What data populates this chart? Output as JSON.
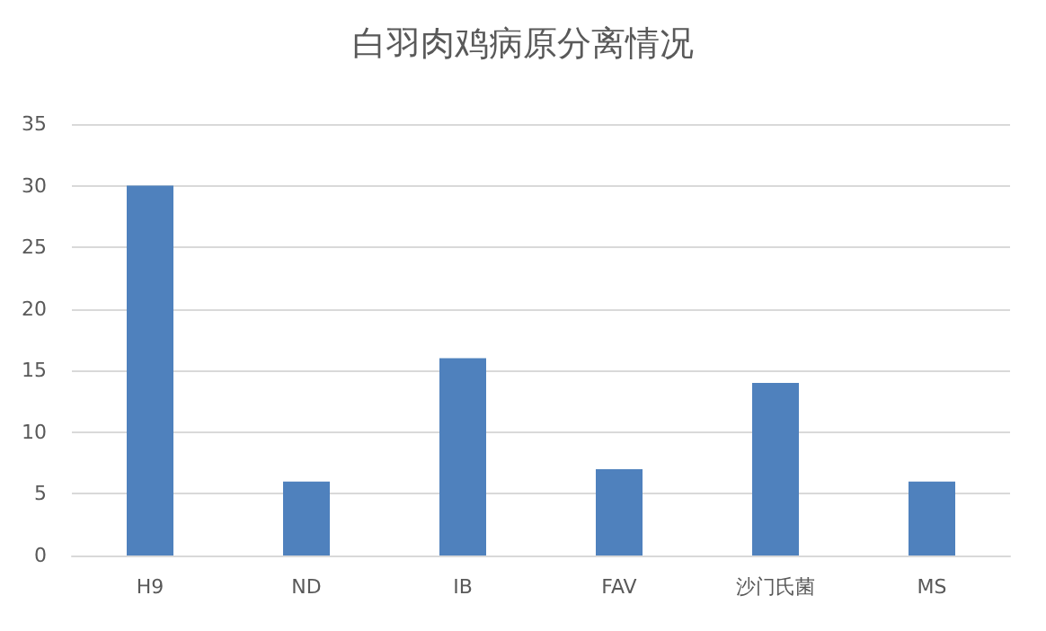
{
  "chart_data": {
    "type": "bar",
    "title": "白羽肉鸡病原分离情况",
    "categories": [
      "H9",
      "ND",
      "IB",
      "FAV",
      "沙门氏菌",
      "MS"
    ],
    "values": [
      30,
      6,
      16,
      7,
      14,
      6
    ],
    "color": "#4f81bd",
    "ylim": [
      0,
      35
    ],
    "yticks": [
      0,
      5,
      10,
      15,
      20,
      25,
      30,
      35
    ],
    "grid": "y"
  }
}
